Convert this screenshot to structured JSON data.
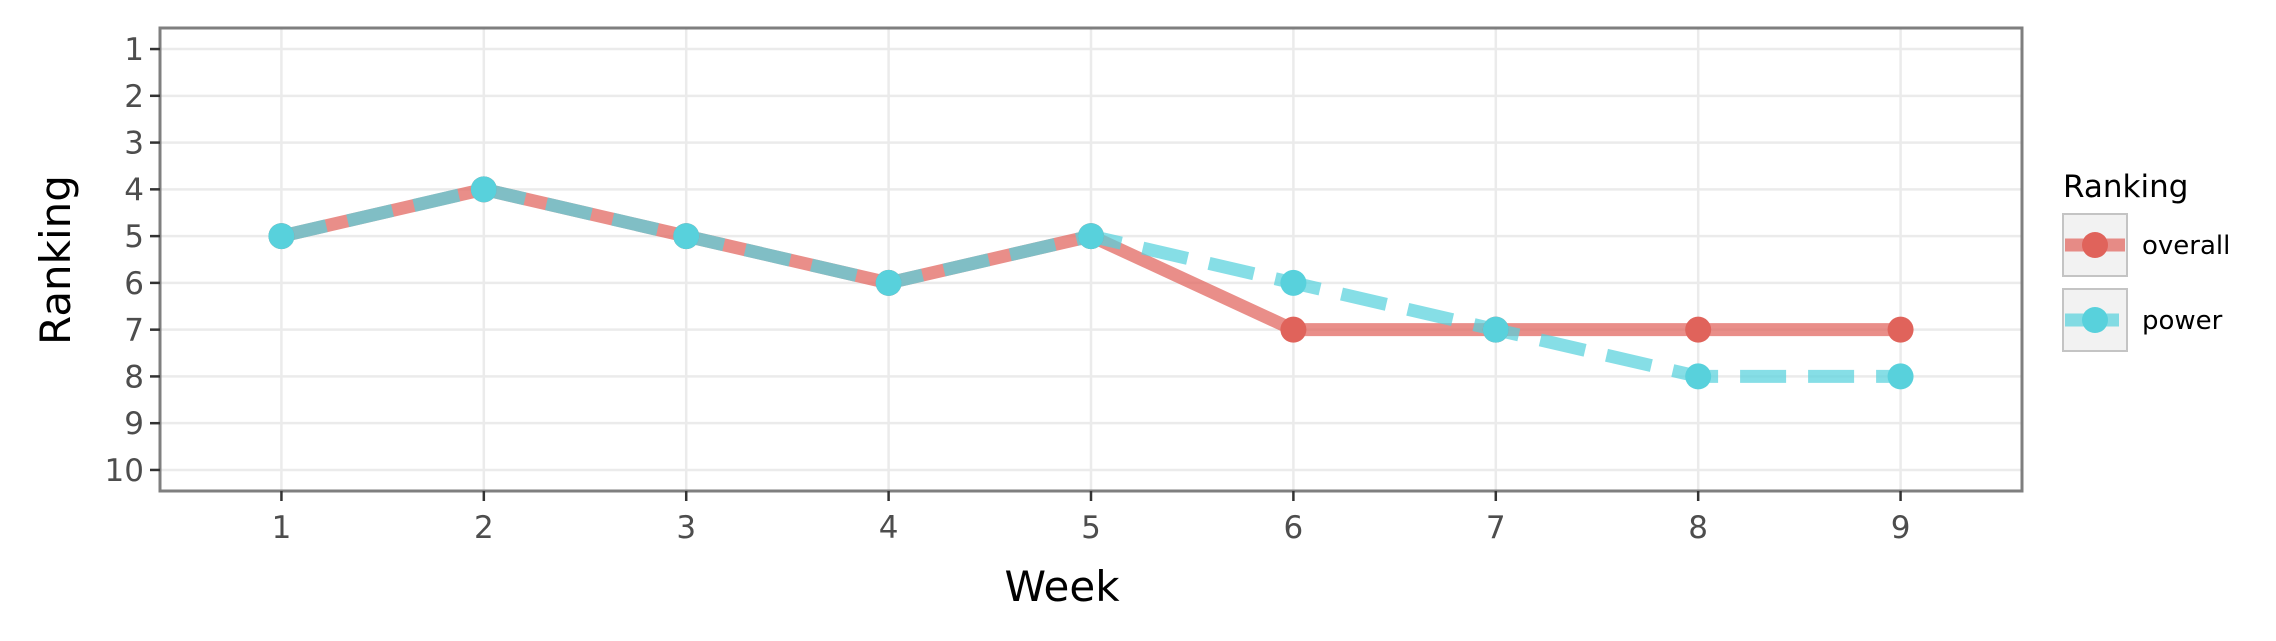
{
  "chart_data": {
    "type": "line",
    "xlabel": "Week",
    "ylabel": "Ranking",
    "x": [
      1,
      2,
      3,
      4,
      5,
      6,
      7,
      8,
      9
    ],
    "xlim": [
      0.4,
      9.6
    ],
    "ylim": [
      10.45,
      0.55
    ],
    "y_reversed": true,
    "y_ticks": [
      "1",
      "2",
      "3",
      "4",
      "5",
      "6",
      "7",
      "8",
      "9",
      "10"
    ],
    "x_ticks": [
      "1",
      "2",
      "3",
      "4",
      "5",
      "6",
      "7",
      "8",
      "9"
    ],
    "grid": true,
    "legend": {
      "title": "Ranking",
      "position": "right"
    },
    "series": [
      {
        "name": "overall",
        "values": [
          5,
          4,
          5,
          6,
          5,
          7,
          7,
          7,
          7
        ],
        "color": "#e0635b",
        "line_style": "solid"
      },
      {
        "name": "power",
        "values": [
          5,
          4,
          5,
          6,
          5,
          6,
          7,
          8,
          8
        ],
        "color": "#58d1dc",
        "line_style": "dashed"
      }
    ]
  }
}
